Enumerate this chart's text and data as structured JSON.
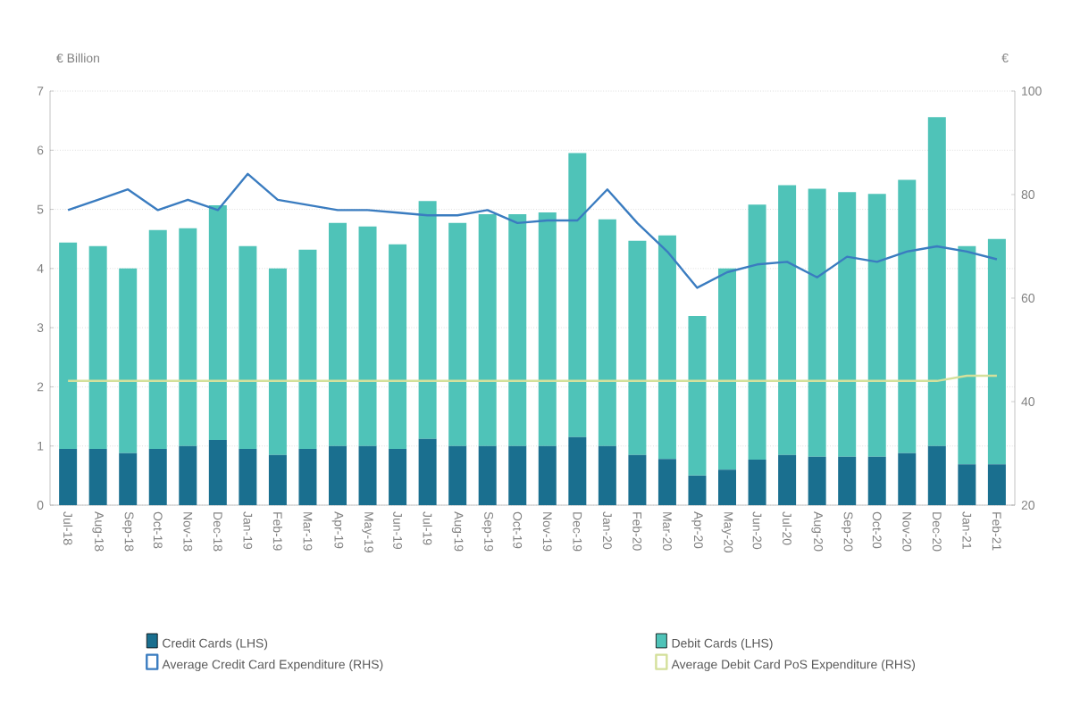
{
  "chart_data": {
    "type": "bar",
    "stacked": true,
    "ylabel": "€ Billion",
    "y2label": "€",
    "categories": [
      "Jul-18",
      "Aug-18",
      "Sep-18",
      "Oct-18",
      "Nov-18",
      "Dec-18",
      "Jan-19",
      "Feb-19",
      "Mar-19",
      "Apr-19",
      "May-19",
      "Jun-19",
      "Jul-19",
      "Aug-19",
      "Sep-19",
      "Oct-19",
      "Nov-19",
      "Dec-19",
      "Jan-20",
      "Feb-20",
      "Mar-20",
      "Apr-20",
      "May-20",
      "Jun-20",
      "Jul-20",
      "Aug-20",
      "Sep-20",
      "Oct-20",
      "Nov-20",
      "Dec-20",
      "Jan-21",
      "Feb-21"
    ],
    "series": [
      {
        "name": "Credit Cards (LHS)",
        "color": "#1a6f8f",
        "values": [
          0.95,
          0.95,
          0.88,
          0.95,
          1.0,
          1.1,
          0.95,
          0.85,
          0.95,
          1.0,
          1.0,
          0.95,
          1.12,
          1.0,
          1.0,
          1.0,
          1.0,
          1.15,
          1.0,
          0.85,
          0.78,
          0.5,
          0.6,
          0.77,
          0.85,
          0.82,
          0.82,
          0.82,
          0.88,
          1.0,
          0.69,
          0.69
        ]
      },
      {
        "name": "Debit Cards (LHS)",
        "color": "#4fc3b8",
        "values": [
          3.49,
          3.43,
          3.12,
          3.7,
          3.68,
          3.97,
          3.43,
          3.15,
          3.37,
          3.77,
          3.71,
          3.46,
          4.02,
          3.77,
          3.92,
          3.92,
          3.95,
          4.8,
          3.83,
          3.62,
          3.78,
          2.7,
          3.4,
          4.31,
          4.56,
          4.53,
          4.47,
          4.44,
          4.62,
          5.56,
          3.69,
          3.81
        ]
      },
      {
        "name": "Average Credit Card Expenditure (RHS)",
        "type": "line",
        "axis": "y2",
        "color": "#3a7cc0",
        "values": [
          77,
          79,
          81,
          77,
          79,
          77,
          84,
          79,
          78,
          77,
          77,
          76.5,
          76,
          76,
          77,
          74.5,
          75,
          75,
          81,
          74.5,
          69,
          62,
          65,
          66.5,
          67,
          64,
          68,
          67,
          69,
          70,
          69,
          67.5
        ]
      },
      {
        "name": "Average Debit Card PoS Expenditure (RHS)",
        "type": "line",
        "axis": "y2",
        "color": "#d4e09b",
        "values": [
          44,
          44,
          44,
          44,
          44,
          44,
          44,
          44,
          44,
          44,
          44,
          44,
          44,
          44,
          44,
          44,
          44,
          44,
          44,
          44,
          44,
          44,
          44,
          44,
          44,
          44,
          44,
          44,
          44,
          44,
          45,
          45
        ]
      }
    ],
    "ylim": [
      0,
      7
    ],
    "yticks": [
      0,
      1,
      2,
      3,
      4,
      5,
      6,
      7
    ],
    "y2lim": [
      20,
      100
    ],
    "y2ticks": [
      20,
      40,
      60,
      80,
      100
    ],
    "grid": "y",
    "legend": "bottom"
  }
}
